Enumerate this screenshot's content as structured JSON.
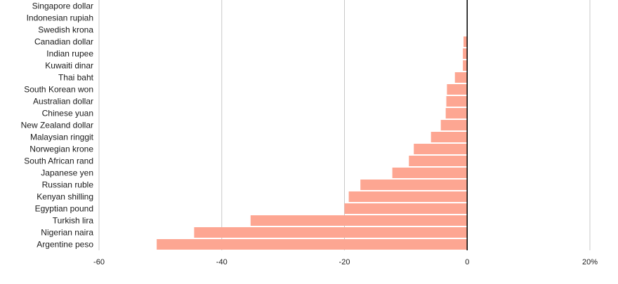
{
  "chart_data": {
    "type": "bar",
    "orientation": "horizontal",
    "categories": [
      "Singapore dollar",
      "Indonesian rupiah",
      "Swedish krona",
      "Canadian dollar",
      "Indian rupee",
      "Kuwaiti dinar",
      "Thai baht",
      "South Korean won",
      "Australian dollar",
      "Chinese yuan",
      "New Zealand dollar",
      "Malaysian ringgit",
      "Norwegian krone",
      "South African rand",
      "Japanese yen",
      "Russian ruble",
      "Kenyan shilling",
      "Egyptian pound",
      "Turkish lira",
      "Nigerian naira",
      "Argentine peso"
    ],
    "values": [
      0,
      0,
      0,
      -0.6,
      -0.7,
      -0.7,
      -2.0,
      -3.3,
      -3.4,
      -3.5,
      -4.3,
      -5.9,
      -8.7,
      -9.5,
      -12.2,
      -17.4,
      -19.3,
      -20.0,
      -35.3,
      -44.5,
      -50.6
    ],
    "xlim": [
      -60,
      20
    ],
    "x_ticks": [
      -60,
      -40,
      -20,
      0,
      20
    ],
    "x_tick_labels": [
      "-60",
      "-40",
      "-20",
      "0",
      "20%"
    ],
    "title": "",
    "xlabel": "",
    "ylabel": "",
    "grid": true,
    "colors": {
      "bar": "#fda692",
      "grid": "#c8c8c8",
      "zero_line": "#000000",
      "text": "#1a1a1a"
    }
  }
}
